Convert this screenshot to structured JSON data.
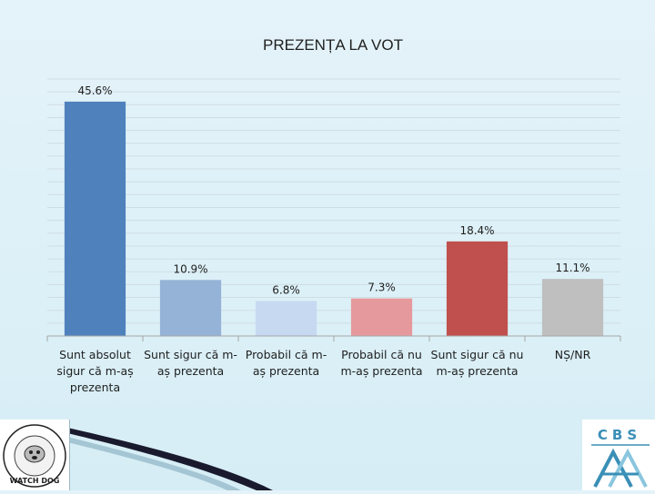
{
  "chart_data": {
    "type": "bar",
    "title": "PREZENȚA LA VOT",
    "categories": [
      [
        "Sunt absolut",
        "sigur că m-aș",
        "prezenta"
      ],
      [
        "Sunt sigur că m-",
        "aș prezenta"
      ],
      [
        "Probabil că m-",
        "aș prezenta"
      ],
      [
        "Probabil că nu",
        "m-aș prezenta"
      ],
      [
        "Sunt sigur că nu",
        "m-aș prezenta"
      ],
      [
        "NȘ/NR"
      ]
    ],
    "values": [
      45.6,
      10.9,
      6.8,
      7.3,
      18.4,
      11.1
    ],
    "data_labels": [
      "45.6%",
      "10.9%",
      "6.8%",
      "7.3%",
      "18.4%",
      "11.1%"
    ],
    "bar_colors": [
      "#4f81bd",
      "#95b3d7",
      "#c6d9f1",
      "#e6999c",
      "#c0504d",
      "#bfbfbf"
    ],
    "ylim": [
      0,
      50
    ],
    "grid": true,
    "xlabel": "",
    "ylabel": ""
  },
  "logos": {
    "left": {
      "text": "WATCH DOG",
      "icon": "watchdog-logo-icon"
    },
    "right": {
      "text": "CBS",
      "icon": "cbs-logo-icon"
    }
  },
  "colors": {
    "grid": "#cfdde3",
    "axis": "#a6a6a6",
    "text": "#1f1f1f",
    "swoosh": "#1a1a2e"
  }
}
